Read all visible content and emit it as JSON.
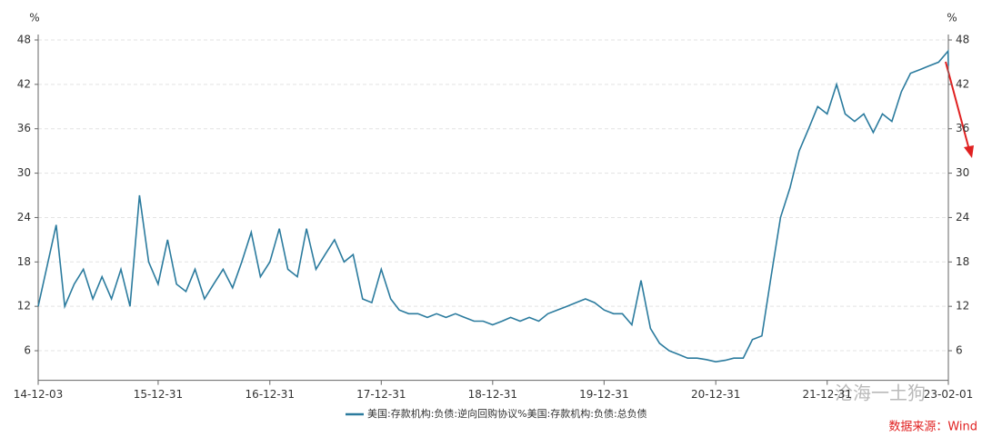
{
  "chart_data": {
    "type": "line",
    "y_unit_left": "%",
    "y_unit_right": "%",
    "x": [
      "14-12-03",
      "15-01-31",
      "15-02-28",
      "15-03-31",
      "15-04-30",
      "15-05-31",
      "15-06-30",
      "15-07-31",
      "15-08-31",
      "15-09-30",
      "15-10-31",
      "15-11-30",
      "15-12-31",
      "16-01-31",
      "16-02-29",
      "16-03-31",
      "16-04-30",
      "16-05-31",
      "16-06-30",
      "16-07-31",
      "16-08-31",
      "16-09-30",
      "16-10-31",
      "16-11-30",
      "16-12-31",
      "17-01-31",
      "17-02-28",
      "17-03-31",
      "17-04-30",
      "17-05-31",
      "17-06-30",
      "17-07-31",
      "17-08-31",
      "17-09-30",
      "17-10-31",
      "17-11-30",
      "17-12-31",
      "18-01-31",
      "18-02-28",
      "18-03-31",
      "18-04-30",
      "18-05-31",
      "18-06-30",
      "18-07-31",
      "18-08-31",
      "18-09-30",
      "18-10-31",
      "18-11-30",
      "18-12-31",
      "19-01-31",
      "19-02-28",
      "19-03-31",
      "19-04-30",
      "19-05-31",
      "19-06-30",
      "19-07-31",
      "19-08-31",
      "19-09-30",
      "19-10-31",
      "19-11-30",
      "19-12-31",
      "20-01-31",
      "20-02-29",
      "20-03-31",
      "20-04-30",
      "20-05-31",
      "20-06-30",
      "20-07-31",
      "20-08-31",
      "20-09-30",
      "20-10-31",
      "20-11-30",
      "20-12-31",
      "21-01-31",
      "21-02-28",
      "21-03-31",
      "21-04-30",
      "21-05-31",
      "21-06-30",
      "21-07-31",
      "21-08-31",
      "21-09-30",
      "21-10-31",
      "21-11-30",
      "21-12-31",
      "22-01-31",
      "22-02-28",
      "22-03-31",
      "22-04-30",
      "22-05-31",
      "22-06-30",
      "22-07-31",
      "22-08-31",
      "22-09-30",
      "22-10-31",
      "22-11-30",
      "22-12-31",
      "23-01-31",
      "23-02-01"
    ],
    "series": [
      {
        "name": "美国:存款机构:负债:逆向回购协议%美国:存款机构:负债:总负债",
        "color": "#2b7b9e",
        "values": [
          12,
          23,
          12,
          15,
          17,
          13,
          16,
          13,
          17,
          12,
          27,
          18,
          15,
          21,
          15,
          14,
          17,
          13,
          15,
          17,
          14.5,
          18,
          22,
          16,
          18,
          22.5,
          17,
          16,
          22.5,
          17,
          19,
          21,
          18,
          19,
          13,
          12.5,
          17,
          13,
          11.5,
          11,
          11,
          10.5,
          11,
          10.5,
          11,
          10.5,
          10,
          10,
          9.5,
          10,
          10.5,
          10,
          10.5,
          10,
          11,
          11.5,
          12,
          12.5,
          13,
          12.5,
          11.5,
          11,
          11,
          9.5,
          15.5,
          9,
          7,
          6,
          5.5,
          5,
          5,
          4.8,
          4.5,
          4.7,
          5,
          5,
          7.5,
          8,
          16,
          24,
          28,
          33,
          36,
          39,
          38,
          42,
          38,
          37,
          38,
          35.5,
          38,
          37,
          41,
          43.5,
          44,
          44.5,
          45,
          46.5,
          44.5
        ]
      }
    ],
    "xlim": [
      "14-12-03",
      "23-02-01"
    ],
    "xticks": [
      "14-12-03",
      "15-12-31",
      "16-12-31",
      "17-12-31",
      "18-12-31",
      "19-12-31",
      "20-12-31",
      "21-12-31",
      "23-02-01"
    ],
    "ylim": [
      2,
      48
    ],
    "yticks": [
      6,
      12,
      18,
      24,
      30,
      36,
      42,
      48
    ],
    "y2lim": [
      2,
      48
    ],
    "y2ticks": [
      6,
      12,
      18,
      24,
      30,
      36,
      42,
      48
    ],
    "grid": true,
    "source": "数据来源：Wind",
    "watermark": "沧海一土狗"
  }
}
